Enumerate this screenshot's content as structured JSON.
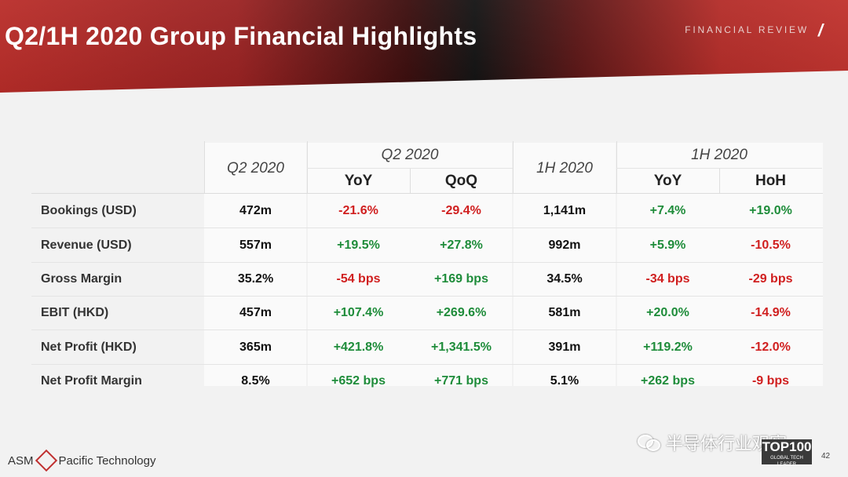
{
  "header": {
    "title": "Q2/1H 2020 Group Financial Highlights",
    "section": "FINANCIAL REVIEW",
    "slash": "/"
  },
  "table": {
    "group_headers": {
      "q2_2020": "Q2 2020",
      "q2_2020_group": "Q2 2020",
      "h1_2020": "1H 2020",
      "h1_2020_group": "1H 2020"
    },
    "sub_headers": {
      "q2_yoy": "YoY",
      "q2_qoq": "QoQ",
      "h1_yoy": "YoY",
      "h1_hoh": "HoH"
    },
    "rows": [
      {
        "label": "Bookings (USD)",
        "q2": "472m",
        "q2_yoy": "-21.6%",
        "q2_qoq": "-29.4%",
        "h1": "1,141m",
        "h1_yoy": "+7.4%",
        "h1_hoh": "+19.0%"
      },
      {
        "label": "Revenue (USD)",
        "q2": "557m",
        "q2_yoy": "+19.5%",
        "q2_qoq": "+27.8%",
        "h1": "992m",
        "h1_yoy": "+5.9%",
        "h1_hoh": "-10.5%"
      },
      {
        "label": "Gross Margin",
        "q2": "35.2%",
        "q2_yoy": "-54 bps",
        "q2_qoq": "+169 bps",
        "h1": "34.5%",
        "h1_yoy": "-34 bps",
        "h1_hoh": "-29 bps"
      },
      {
        "label": "EBIT (HKD)",
        "q2": "457m",
        "q2_yoy": "+107.4%",
        "q2_qoq": "+269.6%",
        "h1": "581m",
        "h1_yoy": "+20.0%",
        "h1_hoh": "-14.9%"
      },
      {
        "label": "Net Profit (HKD)",
        "q2": "365m",
        "q2_yoy": "+421.8%",
        "q2_qoq": "+1,341.5%",
        "h1": "391m",
        "h1_yoy": "+119.2%",
        "h1_hoh": "-12.0%"
      },
      {
        "label": "Net Profit Margin",
        "q2": "8.5%",
        "q2_yoy": "+652 bps",
        "q2_qoq": "+771 bps",
        "h1": "5.1%",
        "h1_yoy": "+262 bps",
        "h1_hoh": "-9 bps"
      }
    ]
  },
  "colors": {
    "negative": "#d01f1f",
    "positive": "#1e8c3a",
    "brand_red": "#b92b27"
  },
  "footer": {
    "company_a": "ASM",
    "company_b": "Pacific Technology",
    "logo_icon": "asm-cube-icon",
    "wechat_icon": "wechat-icon",
    "watermark": "半导体行业观察",
    "badge_main": "TOP100",
    "badge_sub": "GLOBAL TECH LEADER",
    "page_number": "42"
  }
}
